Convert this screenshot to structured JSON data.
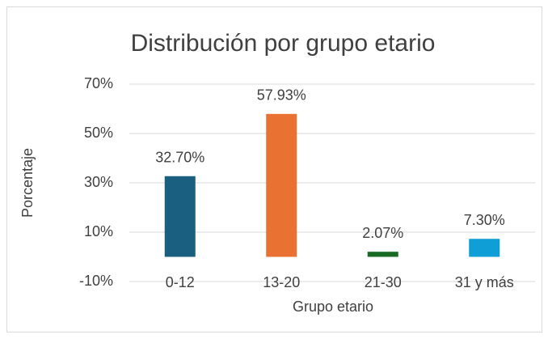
{
  "chart_data": {
    "type": "bar",
    "title": "Distribución por grupo etario",
    "x_label": "Grupo etario",
    "y_label": "Porcentaje",
    "categories": [
      "0-12",
      "13-20",
      "21-30",
      "31 y más"
    ],
    "values": [
      32.7,
      57.93,
      2.07,
      7.3
    ],
    "value_labels": [
      "32.70%",
      "57.93%",
      "2.07%",
      "7.30%"
    ],
    "colors": [
      "#1a5e80",
      "#e97132",
      "#196b24",
      "#0f9ed5"
    ],
    "ylim": [
      -10,
      70
    ],
    "yticks": [
      {
        "value": -10,
        "label": "-10%"
      },
      {
        "value": 10,
        "label": "10%"
      },
      {
        "value": 30,
        "label": "30%"
      },
      {
        "value": 50,
        "label": "50%"
      },
      {
        "value": 70,
        "label": "70%"
      }
    ],
    "grid": true
  }
}
